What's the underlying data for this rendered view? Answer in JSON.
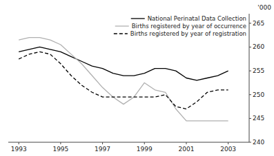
{
  "chart_data": {
    "type": "line",
    "ylabel": "'000",
    "x": [
      1993,
      1993.5,
      1994,
      1994.5,
      1995,
      1995.5,
      1996,
      1996.5,
      1997,
      1997.5,
      1998,
      1998.5,
      1999,
      1999.5,
      2000,
      2000.5,
      2001,
      2001.5,
      2002,
      2002.5,
      2003
    ],
    "series": [
      {
        "name": "National Perinatal Data Collection",
        "color": "#000000",
        "line_style": "solid",
        "values": [
          259.0,
          259.5,
          260.0,
          259.5,
          259.0,
          258.0,
          257.0,
          256.0,
          255.5,
          254.5,
          254.0,
          254.0,
          254.5,
          255.5,
          255.5,
          255.0,
          253.5,
          253.0,
          253.5,
          254.0,
          255.0
        ]
      },
      {
        "name": "Births registered by year of occurrence",
        "color": "#b0b0b0",
        "line_style": "solid",
        "values": [
          261.5,
          262.0,
          262.0,
          261.5,
          260.5,
          258.5,
          256.5,
          254.0,
          251.5,
          249.5,
          248.0,
          249.5,
          252.5,
          251.0,
          250.5,
          247.0,
          244.5,
          244.5,
          244.5,
          244.5,
          244.5
        ]
      },
      {
        "name": "Births registered by year of registration",
        "color": "#000000",
        "line_style": "dashed",
        "values": [
          257.5,
          258.5,
          259.0,
          258.5,
          256.5,
          254.0,
          252.0,
          250.5,
          249.5,
          249.5,
          249.5,
          249.5,
          249.5,
          249.5,
          250.0,
          247.5,
          247.0,
          248.5,
          250.5,
          251.0,
          251.0
        ]
      }
    ],
    "xlim": [
      1992.5,
      2004.0
    ],
    "xticks": [
      1993,
      1995,
      1997,
      1999,
      2001,
      2003
    ],
    "ylim": [
      240,
      267
    ],
    "yticks": [
      240,
      245,
      250,
      255,
      260,
      265
    ],
    "legend": "upper right"
  }
}
